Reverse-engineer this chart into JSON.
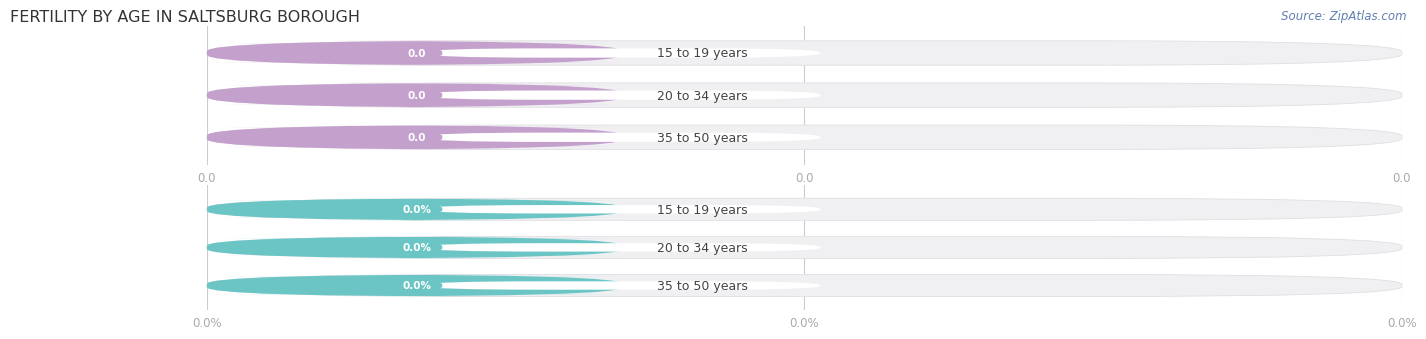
{
  "title": "FERTILITY BY AGE IN SALTSBURG BOROUGH",
  "source_text": "Source: ZipAtlas.com",
  "categories": [
    "15 to 19 years",
    "20 to 34 years",
    "35 to 50 years"
  ],
  "top_labels": [
    "0.0",
    "0.0",
    "0.0"
  ],
  "bottom_labels": [
    "0.0%",
    "0.0%",
    "0.0%"
  ],
  "top_bar_color": "#c4a0cc",
  "top_badge_color": "#c4a0cc",
  "top_circle_color": "#c4a0cc",
  "bottom_bar_color": "#6cc5c5",
  "bottom_badge_color": "#6cc5c5",
  "bottom_circle_color": "#6cc5c5",
  "bar_bg_color": "#f0f0f2",
  "bar_bg_edge_color": "#e0e0e4",
  "label_color": "#444444",
  "title_color": "#333333",
  "source_color": "#6080b0",
  "axis_tick_color": "#aaaaaa",
  "background_color": "#ffffff",
  "top_xtick_labels": [
    "0.0",
    "0.0",
    "0.0"
  ],
  "bottom_xtick_labels": [
    "0.0%",
    "0.0%",
    "0.0%"
  ],
  "figsize": [
    14.06,
    3.31
  ],
  "dpi": 100
}
